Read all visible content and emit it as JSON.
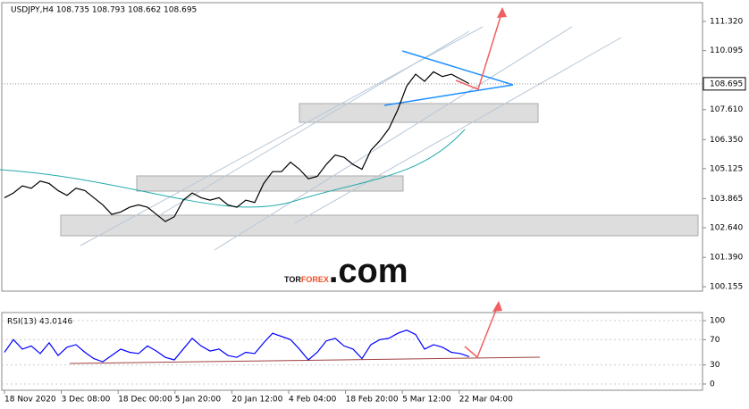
{
  "header": "USDJPY,H4  108.735 108.793 108.662 108.695",
  "watermark": {
    "dark": "TOR",
    "accent": "FOREX",
    "suffix": ".com"
  },
  "x_labels": [
    "18 Nov 2020",
    "3 Dec 08:00",
    "18 Dec 00:00",
    "5 Jan 20:00",
    "20 Jan 12:00",
    "4 Feb 04:00",
    "18 Feb 20:00",
    "5 Mar 12:00",
    "22 Mar 04:00"
  ],
  "chart_data": [
    {
      "type": "line",
      "last_price": 108.695,
      "ylim": [
        99.97,
        112.11
      ],
      "yticks": [
        {
          "value": 111.32,
          "label": "111.320"
        },
        110.095,
        {
          "value": 107.61,
          "label": "107.610"
        },
        {
          "value": 106.35,
          "label": "106.350"
        },
        105.125,
        103.865,
        {
          "value": 102.64,
          "label": "102.640"
        },
        {
          "value": 101.39,
          "label": "101.390"
        },
        100.155
      ],
      "series": [
        {
          "color": "#000000",
          "values": [
            103.9,
            104.1,
            104.4,
            104.3,
            104.6,
            104.5,
            104.2,
            104.0,
            104.3,
            104.2,
            103.9,
            103.6,
            103.2,
            103.3,
            103.5,
            103.6,
            103.5,
            103.2,
            102.9,
            103.1,
            103.8,
            104.1,
            103.9,
            103.8,
            103.9,
            103.6,
            103.5,
            103.8,
            103.7,
            104.5,
            105.0,
            105.0,
            105.4,
            105.1,
            104.7,
            104.8,
            105.3,
            105.7,
            105.6,
            105.3,
            105.1,
            105.9,
            106.3,
            106.8,
            107.6,
            108.6,
            109.1,
            108.8,
            109.2,
            109.0,
            109.1,
            108.9,
            108.7
          ]
        }
      ]
    },
    {
      "type": "line",
      "title": "RSI(13) 43.0146",
      "ylim": [
        -9.9,
        112.7
      ],
      "yticks": [
        0,
        30,
        70,
        100
      ],
      "series": [
        {
          "color": "#0000ff",
          "values": [
            50,
            70,
            55,
            60,
            48,
            65,
            45,
            58,
            62,
            50,
            40,
            35,
            45,
            55,
            50,
            48,
            60,
            52,
            42,
            38,
            55,
            72,
            60,
            52,
            55,
            45,
            42,
            50,
            48,
            65,
            80,
            75,
            70,
            55,
            38,
            50,
            68,
            72,
            60,
            55,
            40,
            62,
            70,
            72,
            80,
            85,
            78,
            55,
            62,
            58,
            50,
            48,
            43
          ]
        }
      ]
    }
  ]
}
